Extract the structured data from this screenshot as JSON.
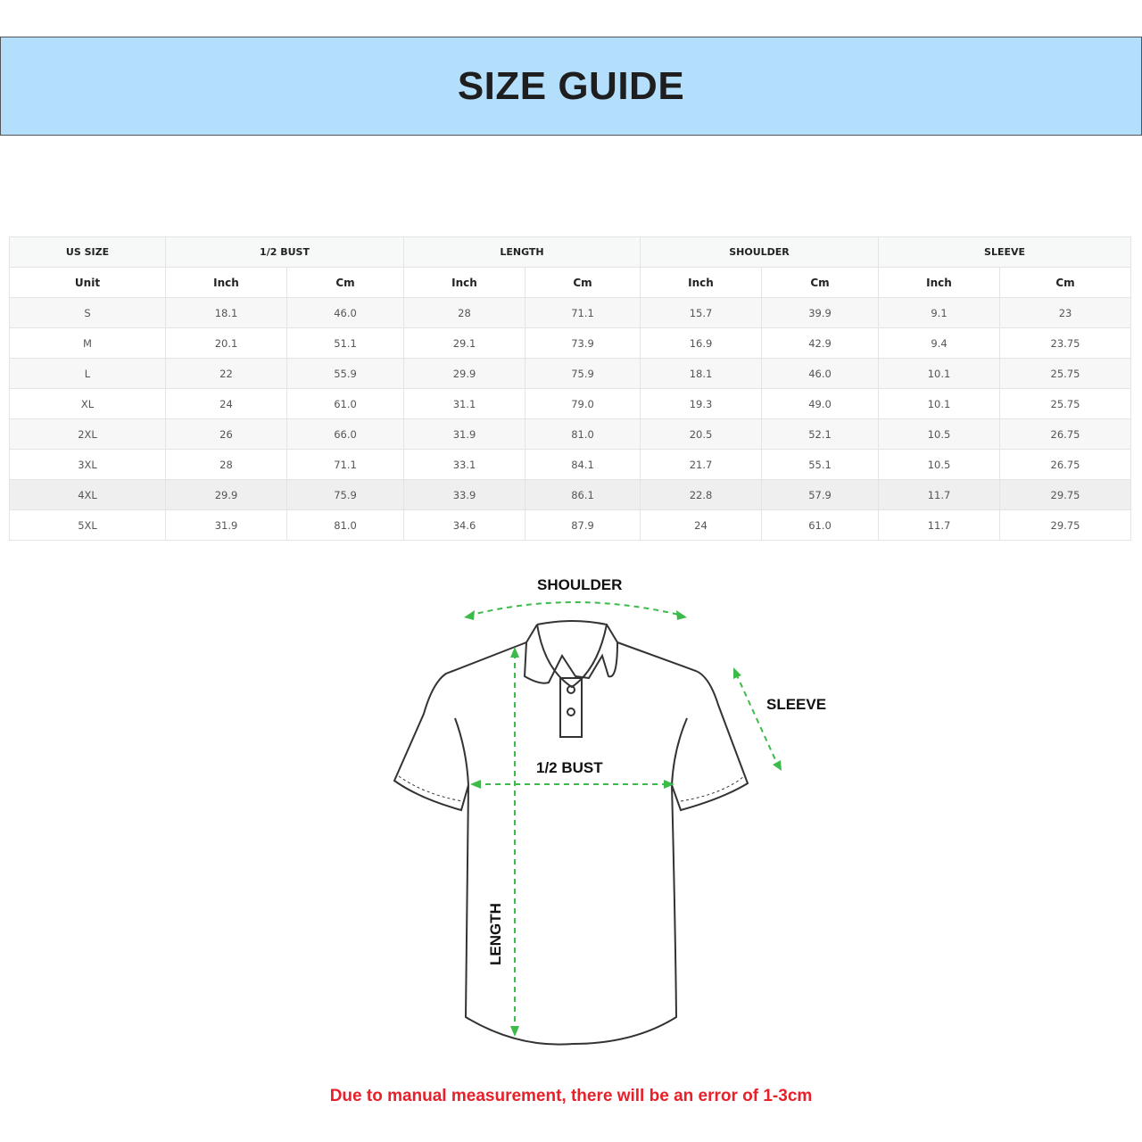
{
  "title": "SIZE GUIDE",
  "table": {
    "groups": [
      "US SIZE",
      "1/2 BUST",
      "LENGTH",
      "SHOULDER",
      "SLEEVE"
    ],
    "units": [
      "Unit",
      "Inch",
      "Cm",
      "Inch",
      "Cm",
      "Inch",
      "Cm",
      "Inch",
      "Cm"
    ],
    "rows": [
      [
        "S",
        "18.1",
        "46.0",
        "28",
        "71.1",
        "15.7",
        "39.9",
        "9.1",
        "23"
      ],
      [
        "M",
        "20.1",
        "51.1",
        "29.1",
        "73.9",
        "16.9",
        "42.9",
        "9.4",
        "23.75"
      ],
      [
        "L",
        "22",
        "55.9",
        "29.9",
        "75.9",
        "18.1",
        "46.0",
        "10.1",
        "25.75"
      ],
      [
        "XL",
        "24",
        "61.0",
        "31.1",
        "79.0",
        "19.3",
        "49.0",
        "10.1",
        "25.75"
      ],
      [
        "2XL",
        "26",
        "66.0",
        "31.9",
        "81.0",
        "20.5",
        "52.1",
        "10.5",
        "26.75"
      ],
      [
        "3XL",
        "28",
        "71.1",
        "33.1",
        "84.1",
        "21.7",
        "55.1",
        "10.5",
        "26.75"
      ],
      [
        "4XL",
        "29.9",
        "75.9",
        "33.9",
        "86.1",
        "22.8",
        "57.9",
        "11.7",
        "29.75"
      ],
      [
        "5XL",
        "31.9",
        "81.0",
        "34.6",
        "87.9",
        "24",
        "61.0",
        "11.7",
        "29.75"
      ]
    ]
  },
  "diagram": {
    "shoulder": "SHOULDER",
    "sleeve": "SLEEVE",
    "bust": "1/2 BUST",
    "length": "LENGTH",
    "arrow_color": "#3dbb4a"
  },
  "note": "Due to manual measurement, there will be an error of 1-3cm",
  "colors": {
    "banner": "#b3defc",
    "note": "#e8202a"
  }
}
